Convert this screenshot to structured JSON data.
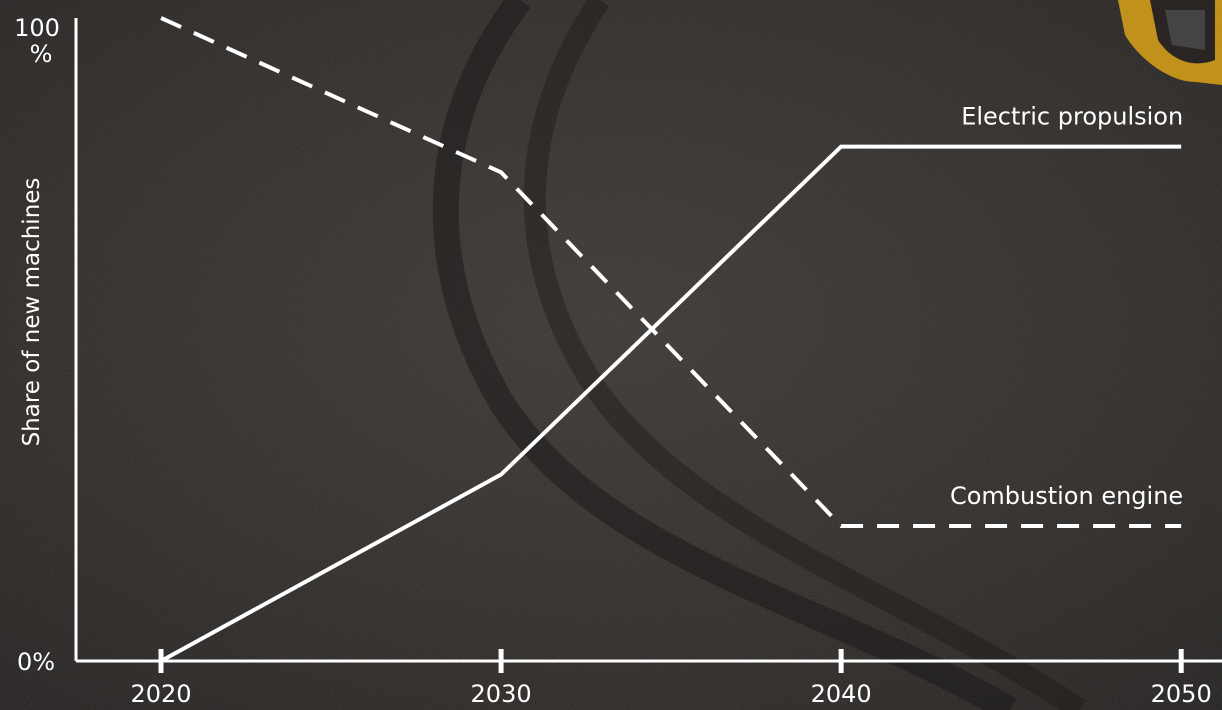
{
  "chart_data": {
    "type": "line",
    "x": [
      2020,
      2030,
      2040,
      2050
    ],
    "series": [
      {
        "name": "Electric propulsion",
        "values": [
          0,
          29,
          80,
          80
        ],
        "style": "solid",
        "color": "#ffffff"
      },
      {
        "name": "Combustion engine",
        "values": [
          100,
          76,
          21,
          21
        ],
        "style": "dashed",
        "color": "#ffffff"
      }
    ],
    "title": "",
    "xlabel": "",
    "ylabel": "Share of new machines",
    "xlim": [
      2017.5,
      2051.2
    ],
    "ylim": [
      0,
      100
    ],
    "x_tick_labels": [
      "2020",
      "2030",
      "2040",
      "2050"
    ],
    "y_tick_top": {
      "value": "100",
      "unit": "%"
    },
    "y_tick_bottom": "0%",
    "legend": "inline labels at right end of each line",
    "grid": false
  },
  "background": {
    "description_color": "#2a2725",
    "accent_vehicle_color": "#e0b020"
  }
}
